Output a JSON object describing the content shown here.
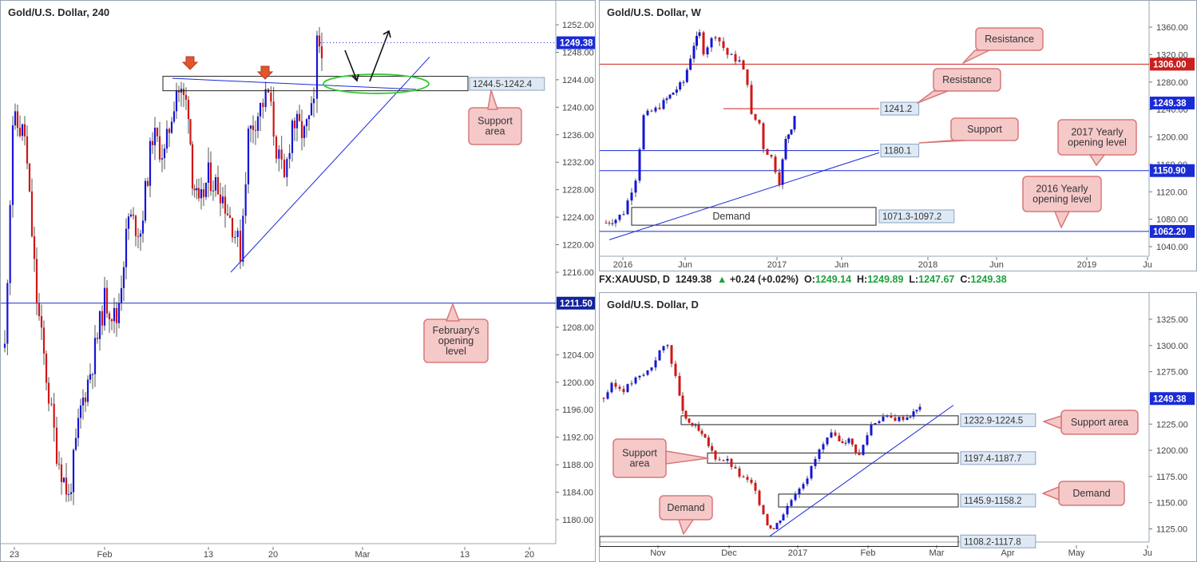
{
  "panels": {
    "h4": {
      "title": "Gold/U.S. Dollar, 240",
      "price_ticks": [
        "1252.00",
        "1248.00",
        "1244.00",
        "1240.00",
        "1236.00",
        "1232.00",
        "1228.00",
        "1224.00",
        "1220.00",
        "1216.00",
        "1208.00",
        "1204.00",
        "1200.00",
        "1196.00",
        "1192.00",
        "1188.00",
        "1184.00",
        "1180.00"
      ],
      "time_ticks": [
        "23",
        "Feb",
        "13",
        "20",
        "Mar",
        "13",
        "20"
      ],
      "current_price": "1249.38",
      "hline_label": "1211.50",
      "zone_label": "1244.5-1242.4",
      "callouts": {
        "support_area": "Support\narea",
        "feb_open": "February's\nopening\nlevel"
      }
    },
    "weekly": {
      "title": "Gold/U.S. Dollar, W",
      "price_ticks": [
        "1360.00",
        "1320.00",
        "1280.00",
        "1240.00",
        "1200.00",
        "1160.00",
        "1120.00",
        "1080.00",
        "1040.00"
      ],
      "time_ticks": [
        "2016",
        "Jun",
        "2017",
        "Jun",
        "2018",
        "Jun",
        "2019",
        "Ju"
      ],
      "current_price": "1249.38",
      "level_1306": "1306.00",
      "level_1150": "1150.90",
      "level_1062": "1062.20",
      "label_1241": "1241.2",
      "label_1180": "1180.1",
      "demand_zone_label": "1071.3-1097.2",
      "demand_text": "Demand",
      "callouts": {
        "resistance_top": "Resistance",
        "resistance_mid": "Resistance",
        "support": "Support",
        "yearly_2017": "2017 Yearly\nopening level",
        "yearly_2016": "2016 Yearly\nopening level"
      }
    },
    "daily": {
      "title": "Gold/U.S. Dollar, D",
      "price_ticks": [
        "1325.00",
        "1300.00",
        "1275.00",
        "1225.00",
        "1200.00",
        "1175.00",
        "1150.00",
        "1125.00"
      ],
      "time_ticks": [
        "Nov",
        "Dec",
        "2017",
        "Feb",
        "Mar",
        "Apr",
        "May",
        "Ju"
      ],
      "current_price": "1249.38",
      "zone_labels": [
        "1232.9-1224.5",
        "1197.4-1187.7",
        "1145.9-1158.2",
        "1108.2-1117.8"
      ],
      "callouts": {
        "support_area_right": "Support area",
        "support_area_left": "Support\narea",
        "demand_right": "Demand",
        "demand_bottom": "Demand"
      }
    }
  },
  "infobar": {
    "symbol": "FX:XAUUSD, D",
    "price": "1249.38",
    "arrow": "▲",
    "change": "+0.24 (+0.02%)",
    "o_label": "O:",
    "o": "1249.14",
    "h_label": "H:",
    "h": "1249.89",
    "l_label": "L:",
    "l": "1247.67",
    "c_label": "C:",
    "c": "1249.38"
  },
  "colors": {
    "up": "#1515d8",
    "down": "#d11616",
    "level_blue": "#1a2bd6",
    "level_red": "#cc1f1f",
    "callout_fill": "#f6c9c9",
    "callout_stroke": "#d87878",
    "zone_label_fill": "#dfe9f5",
    "ellipse": "#33cc33"
  }
}
